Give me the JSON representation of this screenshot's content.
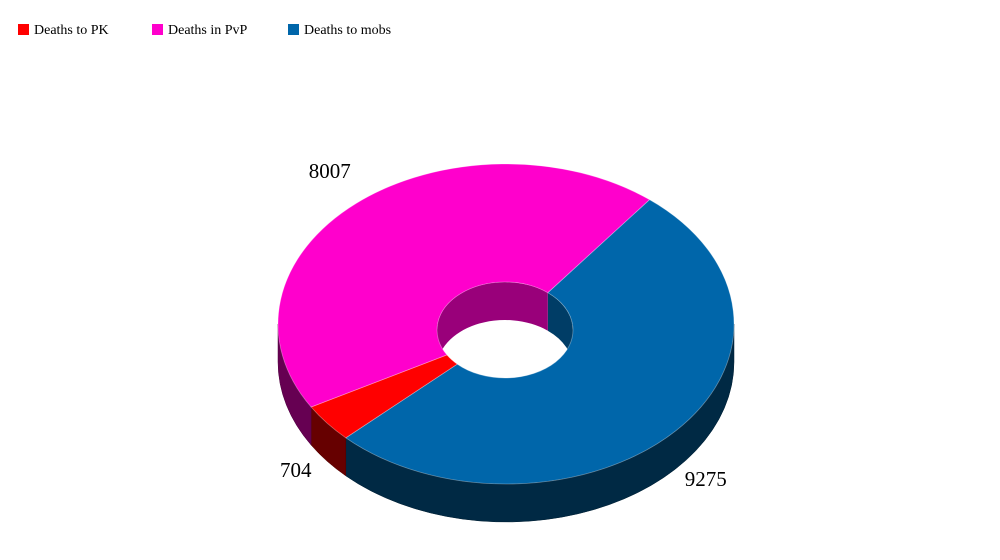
{
  "chart_data": {
    "type": "donut3d",
    "categories": [
      "Deaths to PK",
      "Deaths in PvP",
      "Deaths to mobs"
    ],
    "values": [
      704,
      8007,
      9275
    ],
    "colors": [
      "#ff0000",
      "#ff00cc",
      "#0066aa"
    ],
    "legend": "top-left"
  }
}
